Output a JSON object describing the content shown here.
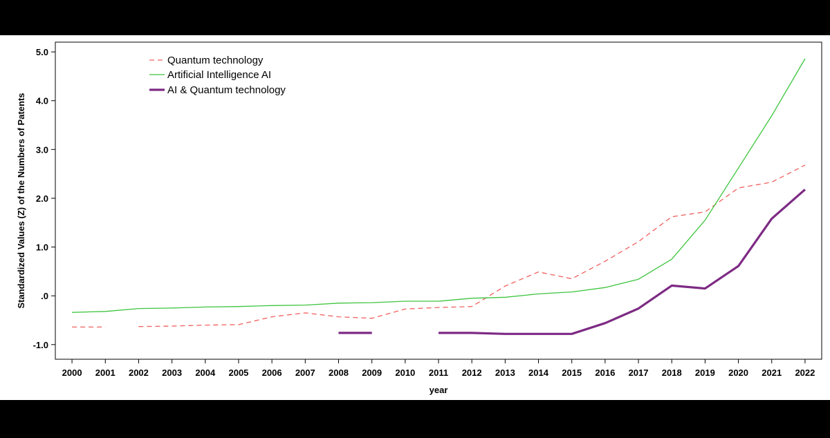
{
  "chart_data": {
    "type": "line",
    "xlabel": "year",
    "ylabel": "Standardized Values (Z) of the Numbers of Patents",
    "ylim": [
      -1.3,
      5.2
    ],
    "y_ticks": [
      -1.0,
      0.0,
      1.0,
      2.0,
      3.0,
      4.0,
      5.0
    ],
    "y_tick_labels": [
      "-1.0",
      ".0",
      "1.0",
      "2.0",
      "3.0",
      "4.0",
      "5.0"
    ],
    "categories": [
      "2000",
      "2001",
      "2002",
      "2003",
      "2004",
      "2005",
      "2006",
      "2007",
      "2008",
      "2009",
      "2010",
      "2011",
      "2012",
      "2013",
      "2014",
      "2015",
      "2016",
      "2017",
      "2018",
      "2019",
      "2020",
      "2021",
      "2022"
    ],
    "legend_position": "top-left",
    "grid": false,
    "series": [
      {
        "name": "Quantum technology",
        "style": "dashed",
        "color": "#f0605e",
        "values": [
          -0.64,
          -0.64,
          -0.63,
          -0.62,
          -0.6,
          -0.59,
          -0.43,
          -0.35,
          -0.43,
          -0.46,
          -0.27,
          -0.24,
          -0.22,
          0.2,
          0.49,
          0.35,
          0.71,
          1.11,
          1.62,
          1.72,
          2.21,
          2.33,
          2.68
        ],
        "gaps_after": [
          "2001"
        ]
      },
      {
        "name": "Artificial Intelligence AI",
        "style": "solid-thin",
        "color": "#3cc43c",
        "values": [
          -0.34,
          -0.32,
          -0.26,
          -0.25,
          -0.23,
          -0.22,
          -0.2,
          -0.19,
          -0.15,
          -0.14,
          -0.11,
          -0.11,
          -0.05,
          -0.03,
          0.04,
          0.08,
          0.17,
          0.34,
          0.75,
          1.55,
          2.62,
          3.69,
          4.86
        ],
        "gaps_after": []
      },
      {
        "name": "AI & Quantum technology",
        "style": "solid-thick",
        "color": "#7d2a84",
        "values": [
          null,
          null,
          null,
          null,
          null,
          null,
          null,
          null,
          -0.76,
          -0.76,
          null,
          -0.76,
          -0.76,
          -0.78,
          -0.78,
          -0.78,
          -0.56,
          -0.26,
          0.21,
          0.15,
          0.61,
          1.58,
          2.18
        ],
        "gaps_after": []
      }
    ]
  }
}
